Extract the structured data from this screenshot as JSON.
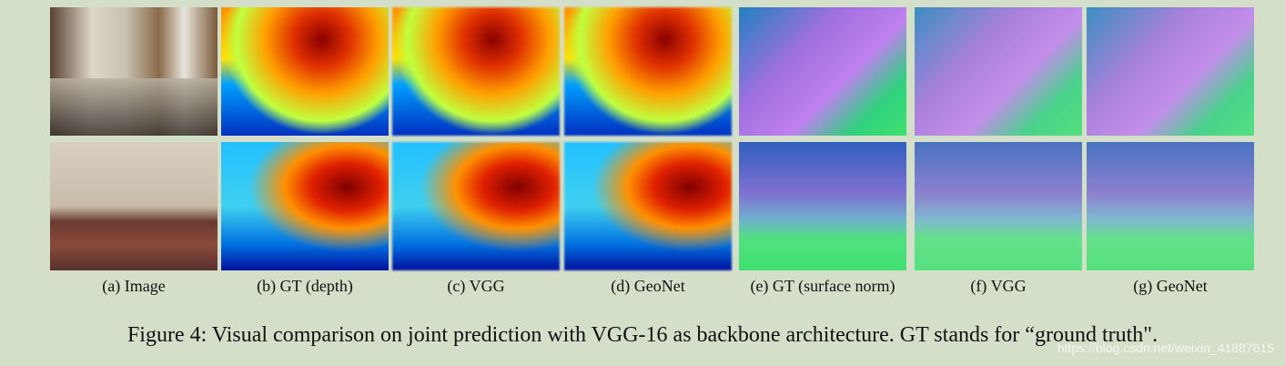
{
  "figure": {
    "panels": [
      {
        "label": "(a) Image"
      },
      {
        "label": "(b) GT (depth)"
      },
      {
        "label": "(c) VGG"
      },
      {
        "label": "(d) GeoNet"
      },
      {
        "label": "(e) GT (surface norm)"
      },
      {
        "label": "(f) VGG"
      },
      {
        "label": "(g) GeoNet"
      }
    ],
    "caption": "Figure 4: Visual comparison on joint prediction with VGG-16 as backbone architecture. GT stands for “ground truth\".",
    "watermark": "https://blog.csdn.net/weixin_41887615"
  }
}
